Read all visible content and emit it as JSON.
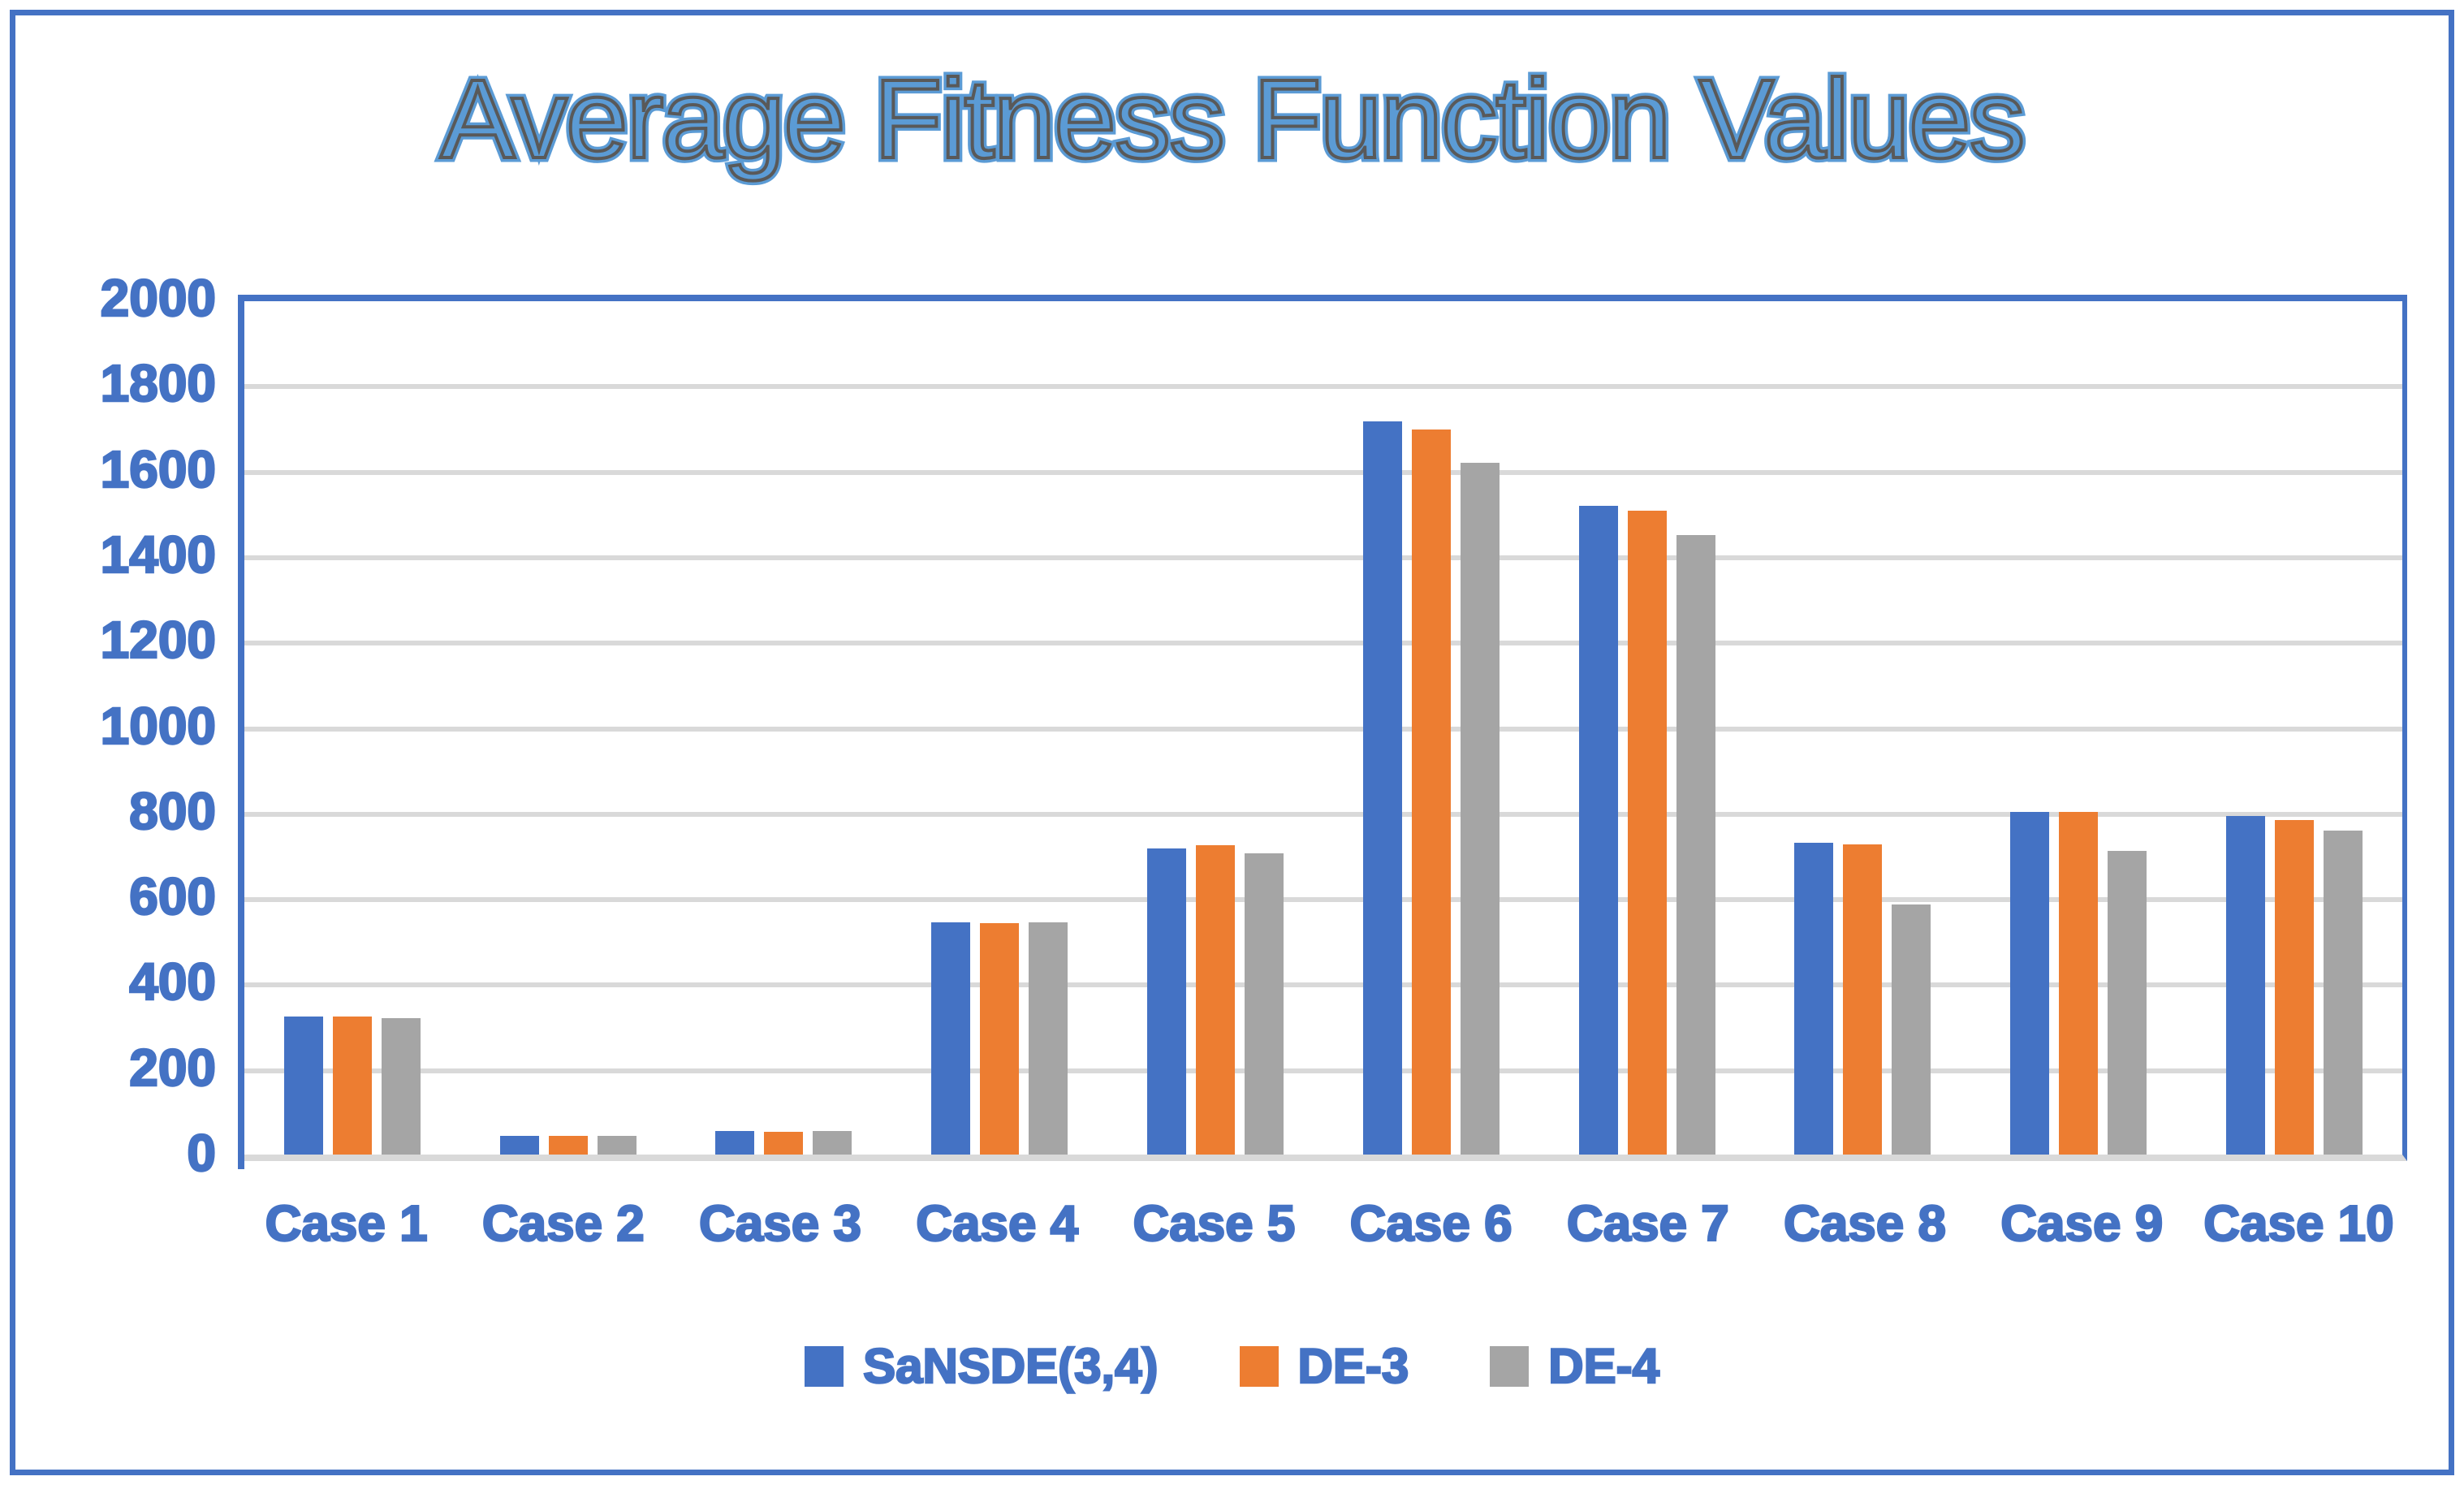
{
  "title": "Average Fitness Function Values",
  "colors": {
    "frame": "#4472C4",
    "axis_text": "#4472C4",
    "gridline": "#D9D9D9",
    "title_fill": "#5B9BD5",
    "title_outline": "#595959",
    "series_blue": "#4472C4",
    "series_orange": "#ED7D31",
    "series_gray": "#A5A5A5"
  },
  "chart_data": {
    "type": "bar",
    "title": "Average Fitness Function Values",
    "categories": [
      "Case 1",
      "Case 2",
      "Case 3",
      "Case 4",
      "Case 5",
      "Case 6",
      "Case 7",
      "Case 8",
      "Case 9",
      "Case 10"
    ],
    "series": [
      {
        "name": "SaNSDE(3,4)",
        "color": "#4472C4",
        "values": [
          322,
          43,
          55,
          543,
          717,
          1715,
          1517,
          730,
          802,
          793
        ]
      },
      {
        "name": "DE-3",
        "color": "#ED7D31",
        "values": [
          322,
          43,
          54,
          541,
          724,
          1697,
          1506,
          725,
          802,
          782
        ]
      },
      {
        "name": "DE-4",
        "color": "#A5A5A5",
        "values": [
          319,
          43,
          55,
          544,
          705,
          1618,
          1449,
          585,
          710,
          757
        ]
      }
    ],
    "xlabel": "",
    "ylabel": "",
    "ylim": [
      0,
      2000
    ],
    "yticks": [
      0,
      200,
      400,
      600,
      800,
      1000,
      1200,
      1400,
      1600,
      1800,
      2000
    ],
    "grid": true,
    "grid_lines_at": [
      200,
      400,
      600,
      800,
      1000,
      1200,
      1400,
      1600,
      1800
    ],
    "legend_position": "bottom",
    "legend": [
      "SaNSDE(3,4)",
      "DE-3",
      "DE-4"
    ]
  }
}
